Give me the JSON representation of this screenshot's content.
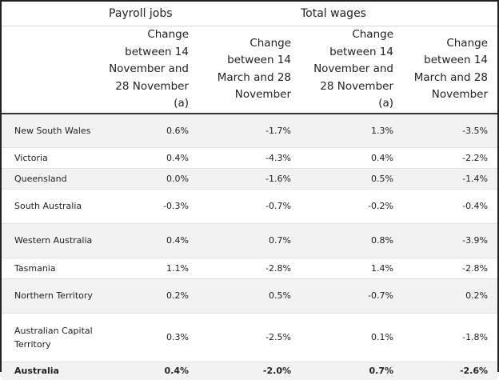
{
  "group_headers": {
    "payroll": "Payroll jobs",
    "wages": "Total wages"
  },
  "sub_headers": [
    "Change between 14 November and 28 November (a)",
    "Change between 14 March and 28 November",
    "Change between 14 November and 28 November (a)",
    "Change between 14 March and 28 November"
  ],
  "rows": [
    {
      "region": "New South Wales",
      "jobs_nov": "0.6%",
      "jobs_mar": "-1.7%",
      "wages_nov": "1.3%",
      "wages_mar": "-3.5%"
    },
    {
      "region": "Victoria",
      "jobs_nov": "0.4%",
      "jobs_mar": "-4.3%",
      "wages_nov": "0.4%",
      "wages_mar": "-2.2%"
    },
    {
      "region": "Queensland",
      "jobs_nov": "0.0%",
      "jobs_mar": "-1.6%",
      "wages_nov": "0.5%",
      "wages_mar": "-1.4%"
    },
    {
      "region": "South Australia",
      "jobs_nov": "-0.3%",
      "jobs_mar": "-0.7%",
      "wages_nov": "-0.2%",
      "wages_mar": "-0.4%"
    },
    {
      "region": "Western Australia",
      "jobs_nov": "0.4%",
      "jobs_mar": "0.7%",
      "wages_nov": "0.8%",
      "wages_mar": "-3.9%"
    },
    {
      "region": "Tasmania",
      "jobs_nov": "1.1%",
      "jobs_mar": "-2.8%",
      "wages_nov": "1.4%",
      "wages_mar": "-2.8%"
    },
    {
      "region": "Northern Territory",
      "jobs_nov": "0.2%",
      "jobs_mar": "0.5%",
      "wages_nov": "-0.7%",
      "wages_mar": "0.2%"
    },
    {
      "region": "Australian Capital Territory",
      "jobs_nov": "0.3%",
      "jobs_mar": "-2.5%",
      "wages_nov": "0.1%",
      "wages_mar": "-1.8%"
    }
  ],
  "total": {
    "region": "Australia",
    "jobs_nov": "0.4%",
    "jobs_mar": "-2.0%",
    "wages_nov": "0.7%",
    "wages_mar": "-2.6%"
  }
}
